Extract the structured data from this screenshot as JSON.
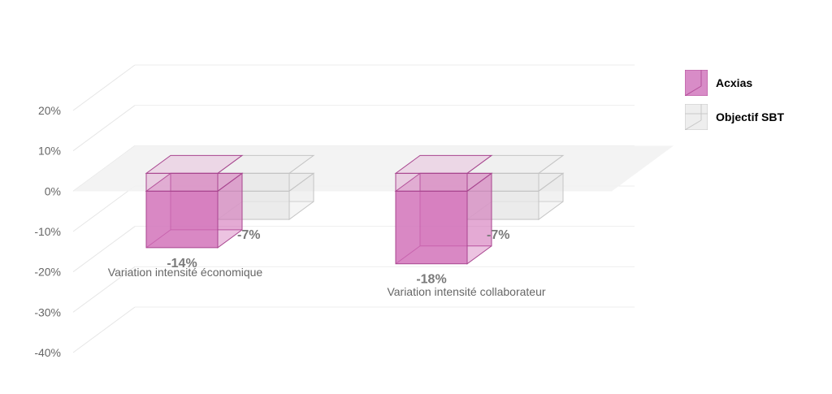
{
  "chart_data": {
    "type": "bar",
    "title": "",
    "xlabel": "",
    "ylabel": "",
    "categories": [
      "Variation intensité économique",
      "Variation intensité collaborateur"
    ],
    "series": [
      {
        "name": "Acxias",
        "values": [
          -14,
          -18
        ],
        "labels": [
          "-14%",
          "-18%"
        ],
        "color": "#d06ab5"
      },
      {
        "name": "Objectif SBT",
        "values": [
          -7,
          -7
        ],
        "labels": [
          "-7%",
          "-7%"
        ],
        "color": "#d9d9d9"
      }
    ],
    "ylim": [
      -40,
      20
    ],
    "yticks": [
      "20%",
      "10%",
      "0%",
      "-10%",
      "-20%",
      "-30%",
      "-40%"
    ],
    "grid": true,
    "legend_position": "right",
    "three_d": true
  }
}
